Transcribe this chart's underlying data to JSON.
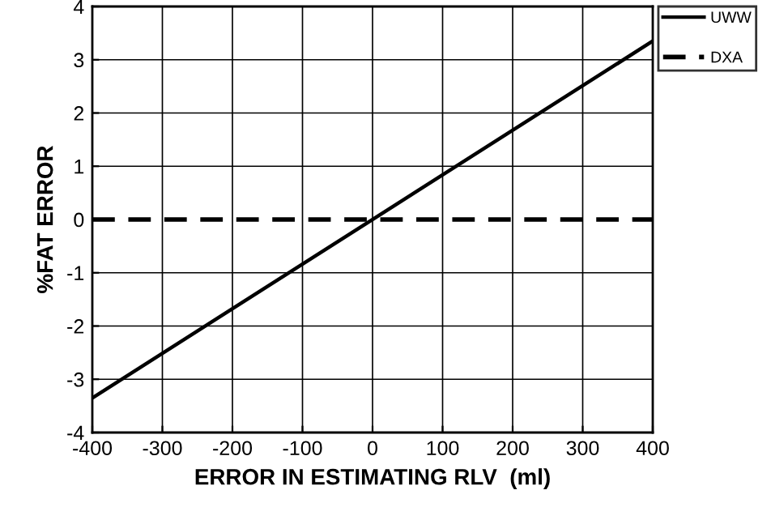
{
  "chart_data": {
    "type": "line",
    "xlabel": "ERROR IN ESTIMATING RLV  (ml)",
    "ylabel": "%FAT ERROR",
    "x": [
      -400,
      400
    ],
    "series": [
      {
        "name": "UWW",
        "color": "#000000",
        "values": [
          -3.35,
          3.35
        ],
        "line_style": "solid"
      },
      {
        "name": "DXA",
        "color": "#000000",
        "values": [
          0,
          0
        ],
        "line_style": "dashed"
      }
    ],
    "xlim": [
      -400,
      400
    ],
    "xticks": [
      -400,
      -300,
      -200,
      -100,
      0,
      100,
      200,
      300,
      400
    ],
    "ylim": [
      -4,
      4
    ],
    "yticks": [
      -4,
      -3,
      -2,
      -1,
      0,
      1,
      2,
      3,
      4
    ],
    "grid": true,
    "legend": "top right",
    "marker": "none"
  }
}
